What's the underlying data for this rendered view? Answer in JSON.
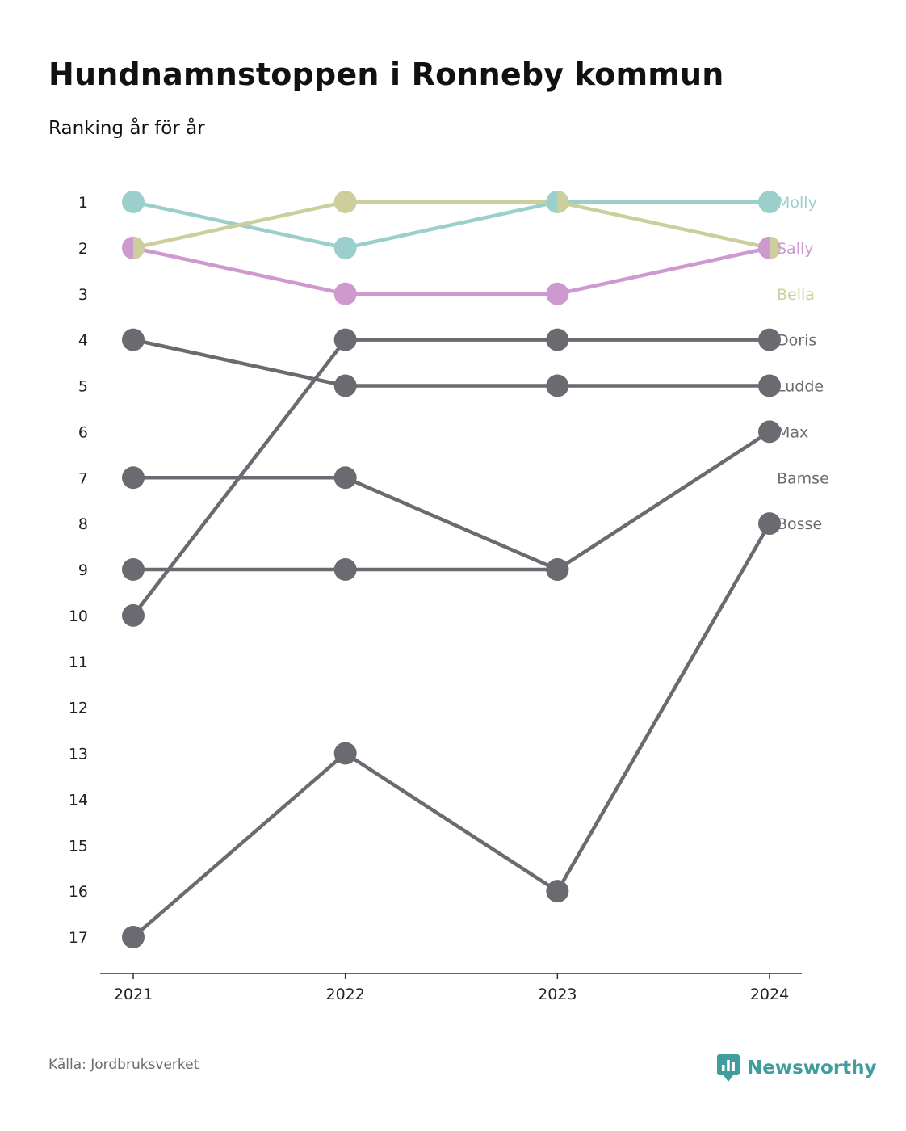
{
  "header": {
    "title": "Hundnamnstoppen i Ronneby kommun",
    "subtitle": "Ranking år för år"
  },
  "footer": {
    "source": "Källa: Jordbruksverket",
    "brand": "Newsworthy",
    "brand_icon": "bar-chart-speech-bubble-icon"
  },
  "colors": {
    "Molly": "#9bcfcb",
    "Sally": "#cd99cf",
    "Bella": "#cccf9b",
    "other": "#6b6a70",
    "axis": "#333333",
    "tick_text": "#222222",
    "brand": "#3f9d9d"
  },
  "chart_data": {
    "type": "line",
    "subtype": "bump-chart",
    "x": [
      "2021",
      "2022",
      "2023",
      "2024"
    ],
    "y_ticks": [
      1,
      2,
      3,
      4,
      5,
      6,
      7,
      8,
      9,
      10,
      11,
      12,
      13,
      14,
      15,
      16,
      17
    ],
    "y_reversed": true,
    "ylim": [
      1,
      17
    ],
    "grid": false,
    "legend": "labels at right end of lines",
    "series": [
      {
        "name": "Molly",
        "values": [
          1,
          2,
          1,
          1
        ],
        "highlight": true
      },
      {
        "name": "Sally",
        "values": [
          2,
          3,
          3,
          2
        ],
        "highlight": true
      },
      {
        "name": "Bella",
        "values": [
          2,
          1,
          1,
          2
        ],
        "highlight": true
      },
      {
        "name": "Doris",
        "values": [
          10,
          4,
          4,
          4
        ],
        "highlight": false
      },
      {
        "name": "Ludde",
        "values": [
          4,
          5,
          5,
          5
        ],
        "highlight": false
      },
      {
        "name": "Max",
        "values": [
          7,
          7,
          9,
          6
        ],
        "highlight": false
      },
      {
        "name": "Bamse",
        "values": [
          9,
          9,
          9,
          null
        ],
        "highlight": false
      },
      {
        "name": "Bosse",
        "values": [
          17,
          13,
          16,
          8
        ],
        "highlight": false
      }
    ],
    "end_labels": [
      {
        "name": "Molly",
        "rank": 1
      },
      {
        "name": "Sally",
        "rank": 2
      },
      {
        "name": "Bella",
        "rank": 3
      },
      {
        "name": "Doris",
        "rank": 4
      },
      {
        "name": "Ludde",
        "rank": 5
      },
      {
        "name": "Max",
        "rank": 6
      },
      {
        "name": "Bamse",
        "rank": 7
      },
      {
        "name": "Bosse",
        "rank": 8
      }
    ]
  }
}
